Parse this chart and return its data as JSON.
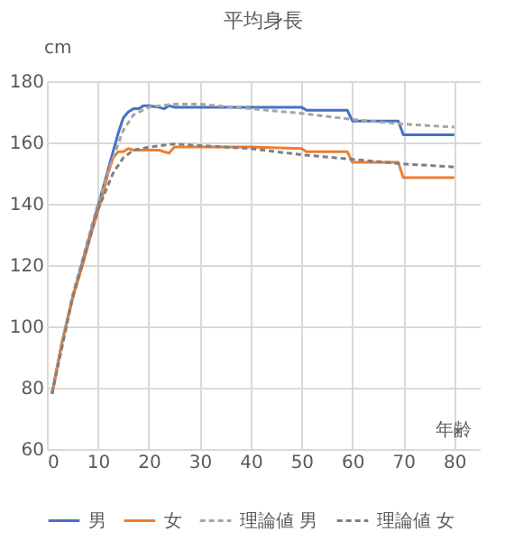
{
  "chart_data": {
    "type": "line",
    "title": "平均身長",
    "xlabel": "年齢",
    "ylabel": "cm",
    "xlim": [
      0,
      85
    ],
    "xticks": [
      0,
      10,
      20,
      30,
      40,
      50,
      60,
      70,
      80
    ],
    "ylim": [
      60,
      180
    ],
    "yticks": [
      60,
      80,
      100,
      120,
      140,
      160,
      180
    ],
    "grid": true,
    "legend": "bottom",
    "marker": "none",
    "series": [
      {
        "name": "男",
        "color": "#4472c4",
        "line_style": "solid",
        "x": [
          1,
          3,
          5,
          7,
          9,
          11,
          13,
          14,
          15,
          16,
          17,
          18,
          19,
          20,
          22,
          23,
          24,
          25,
          30,
          40,
          50,
          51,
          59,
          60,
          69,
          70,
          80
        ],
        "values": [
          78,
          95,
          109,
          121,
          133,
          145,
          157,
          163,
          168,
          170,
          171,
          171,
          172,
          172,
          171.5,
          171,
          172,
          171.5,
          171.5,
          171.5,
          171.5,
          170.5,
          170.5,
          167,
          167,
          162.5,
          162.5
        ]
      },
      {
        "name": "女",
        "color": "#ed7d31",
        "line_style": "solid",
        "x": [
          1,
          3,
          5,
          7,
          9,
          11,
          12,
          13,
          14,
          15,
          16,
          17,
          20,
          22,
          23,
          24,
          25,
          30,
          40,
          50,
          51,
          59,
          60,
          69,
          70,
          80
        ],
        "values": [
          78,
          95,
          109,
          120,
          132,
          143,
          150,
          155,
          157,
          157,
          158,
          157.5,
          157.5,
          157.5,
          157,
          156.5,
          158.5,
          158.5,
          158.5,
          158,
          157,
          157,
          153.5,
          153.5,
          148.5,
          148.5
        ]
      },
      {
        "name": "理論値 男",
        "color": "#a5a5a5",
        "line_style": "dashed",
        "x": [
          1,
          5,
          10,
          13,
          15,
          17,
          20,
          25,
          30,
          40,
          50,
          60,
          70,
          80
        ],
        "values": [
          78,
          110,
          140,
          155,
          164,
          169,
          171.5,
          172.5,
          172.5,
          171,
          169.5,
          167.5,
          166,
          165
        ]
      },
      {
        "name": "理論値 女",
        "color": "#7f7f7f",
        "line_style": "dashed",
        "x": [
          1,
          5,
          10,
          13,
          15,
          17,
          20,
          25,
          30,
          40,
          50,
          60,
          70,
          80
        ],
        "values": [
          78,
          109,
          138,
          150,
          155,
          157.5,
          158.5,
          159.5,
          159,
          158,
          156,
          154.5,
          153,
          152
        ]
      }
    ]
  }
}
